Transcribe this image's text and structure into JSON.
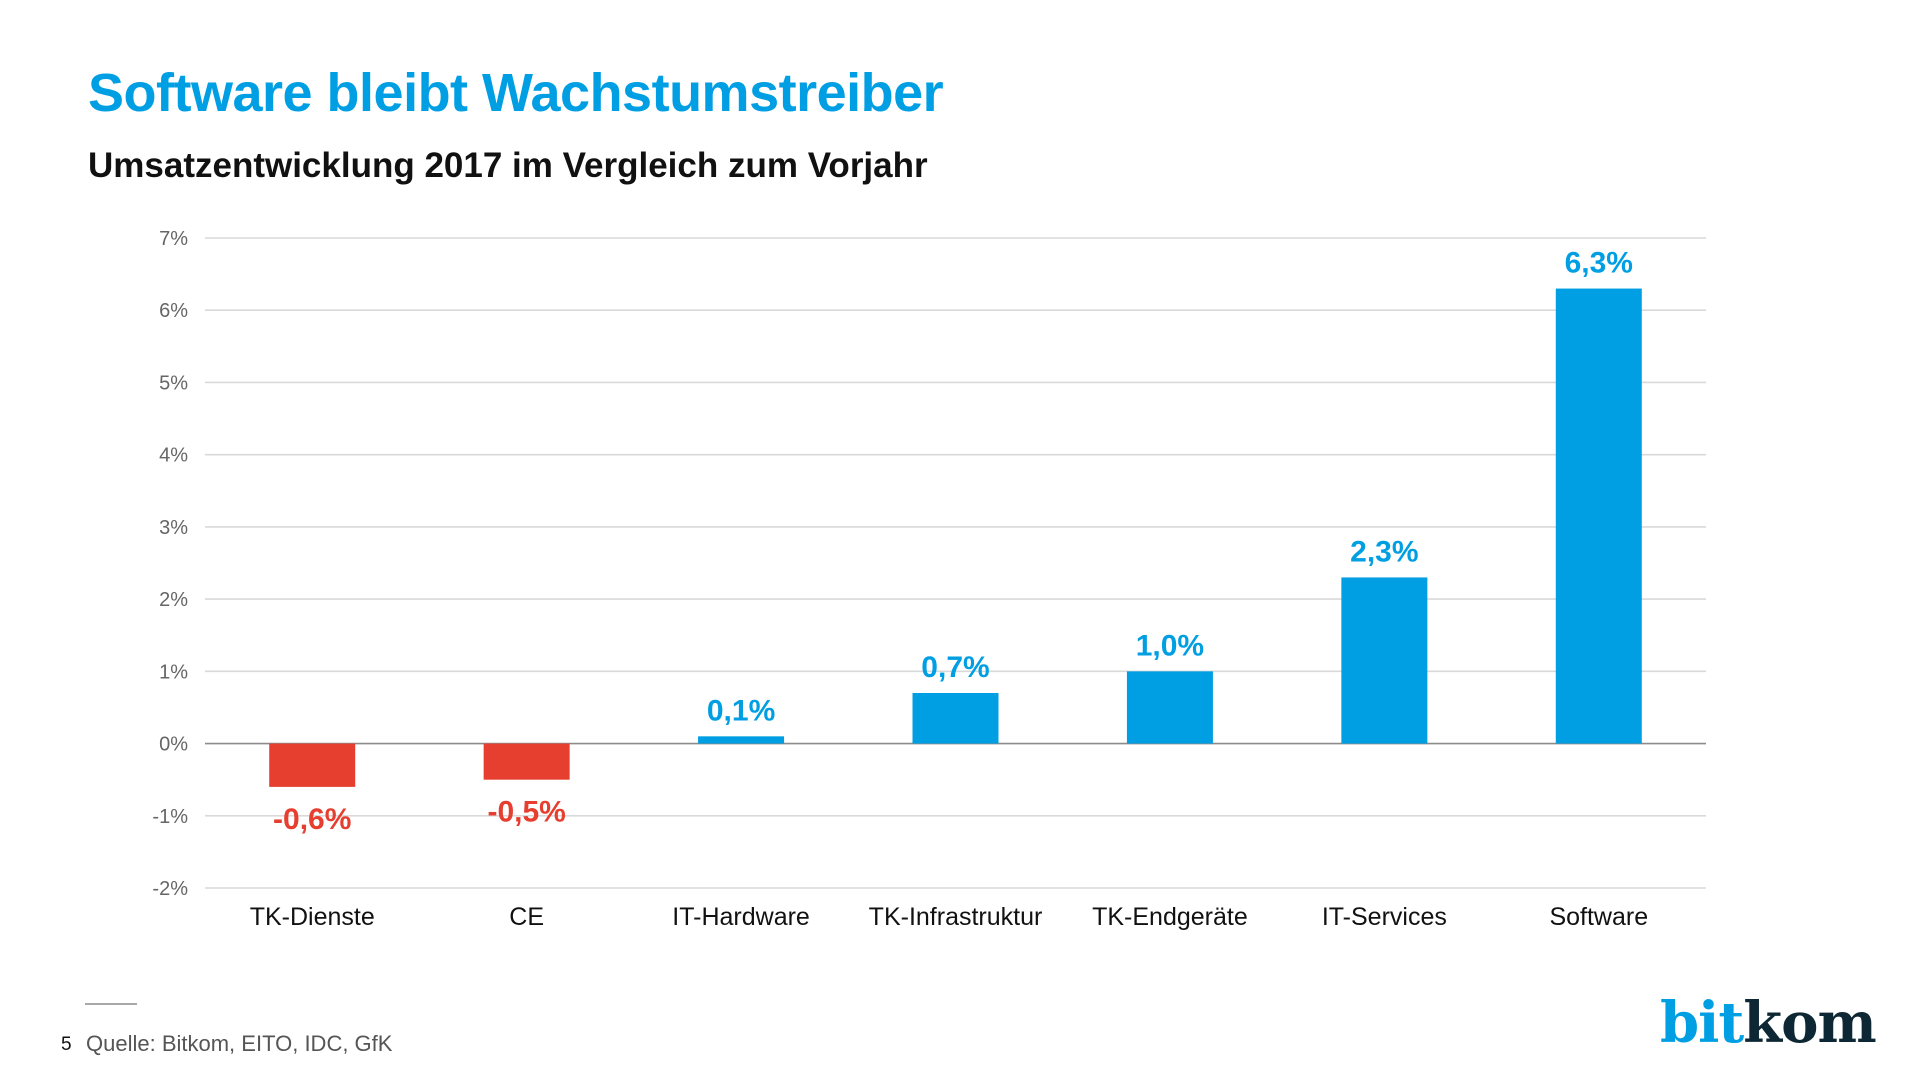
{
  "slide": {
    "title": "Software bleibt Wachstumstreiber",
    "subtitle": "Umsatzentwicklung 2017 im Vergleich zum Vorjahr",
    "page_number": "5",
    "source": "Quelle: Bitkom, EITO, IDC, GfK",
    "logo": {
      "part1": "bit",
      "part2": "kom"
    }
  },
  "colors": {
    "positive": "#009fe3",
    "negative": "#e63e2f",
    "grid": "#d9d9d9",
    "zero_line": "#8c8c8c",
    "tick_text": "#666666",
    "category_text": "#111111"
  },
  "chart_data": {
    "type": "bar",
    "title": "Software bleibt Wachstumstreiber",
    "subtitle": "Umsatzentwicklung 2017 im Vergleich zum Vorjahr",
    "xlabel": "",
    "ylabel": "",
    "categories": [
      "TK-Dienste",
      "CE",
      "IT-Hardware",
      "TK-Infrastruktur",
      "TK-Endgeräte",
      "IT-Services",
      "Software"
    ],
    "values": [
      -0.6,
      -0.5,
      0.1,
      0.7,
      1.0,
      2.3,
      6.3
    ],
    "data_labels": [
      "-0,6%",
      "-0,5%",
      "0,1%",
      "0,7%",
      "1,0%",
      "2,3%",
      "6,3%"
    ],
    "ylim": [
      -2,
      7
    ],
    "yticks": [
      7,
      6,
      5,
      4,
      3,
      2,
      1,
      0,
      -1,
      -2
    ],
    "ytick_labels": [
      "7%",
      "6%",
      "5%",
      "4%",
      "3%",
      "2%",
      "1%",
      "0%",
      "-1%",
      "-2%"
    ],
    "grid": true,
    "legend": "none"
  }
}
